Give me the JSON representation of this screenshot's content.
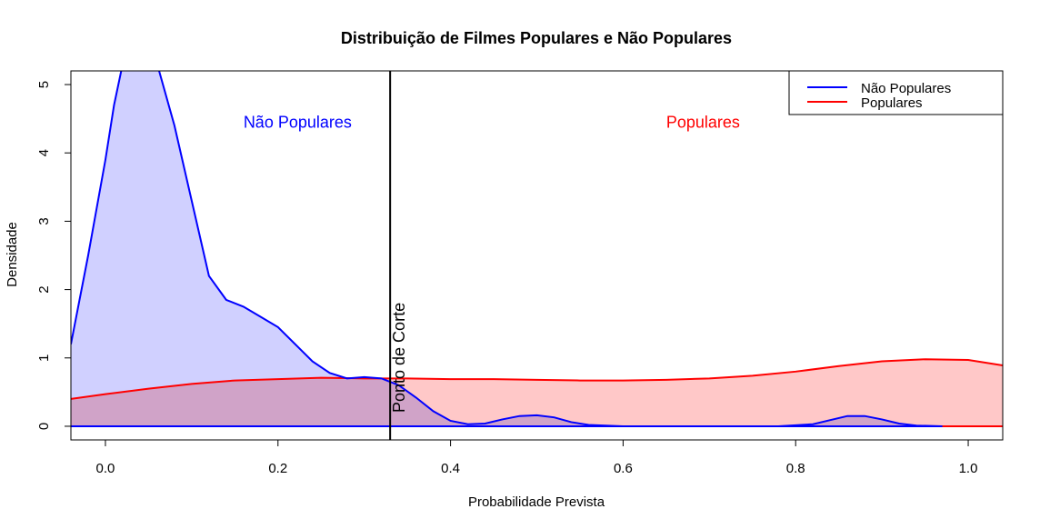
{
  "chart_data": {
    "type": "area",
    "title": "Distribuição de Filmes Populares e Não Populares",
    "xlabel": "Probabilidade Prevista",
    "ylabel": "Densidade",
    "xlim": [
      -0.04,
      1.04
    ],
    "ylim": [
      -0.2,
      5.2
    ],
    "x_ticks": [
      "0.0",
      "0.2",
      "0.4",
      "0.6",
      "0.8",
      "1.0"
    ],
    "y_ticks": [
      "0",
      "1",
      "2",
      "3",
      "4",
      "5"
    ],
    "grid": false,
    "legend_position": "top-right",
    "series": [
      {
        "name": "Não Populares",
        "line_color": "#0000FF",
        "fill_color": "#C8C8FF",
        "points": [
          [
            -0.04,
            1.2
          ],
          [
            -0.02,
            2.5
          ],
          [
            0.0,
            3.9
          ],
          [
            0.01,
            4.7
          ],
          [
            0.02,
            5.3
          ],
          [
            0.04,
            5.7
          ],
          [
            0.06,
            5.3
          ],
          [
            0.08,
            4.4
          ],
          [
            0.1,
            3.3
          ],
          [
            0.12,
            2.2
          ],
          [
            0.14,
            1.85
          ],
          [
            0.16,
            1.75
          ],
          [
            0.18,
            1.6
          ],
          [
            0.2,
            1.45
          ],
          [
            0.22,
            1.2
          ],
          [
            0.24,
            0.95
          ],
          [
            0.26,
            0.78
          ],
          [
            0.28,
            0.7
          ],
          [
            0.3,
            0.72
          ],
          [
            0.32,
            0.7
          ],
          [
            0.34,
            0.6
          ],
          [
            0.36,
            0.42
          ],
          [
            0.38,
            0.22
          ],
          [
            0.4,
            0.08
          ],
          [
            0.42,
            0.03
          ],
          [
            0.44,
            0.04
          ],
          [
            0.46,
            0.1
          ],
          [
            0.48,
            0.15
          ],
          [
            0.5,
            0.16
          ],
          [
            0.52,
            0.13
          ],
          [
            0.54,
            0.06
          ],
          [
            0.56,
            0.02
          ],
          [
            0.6,
            0.0
          ],
          [
            0.7,
            0.0
          ],
          [
            0.78,
            0.0
          ],
          [
            0.82,
            0.03
          ],
          [
            0.84,
            0.09
          ],
          [
            0.86,
            0.15
          ],
          [
            0.88,
            0.15
          ],
          [
            0.9,
            0.1
          ],
          [
            0.92,
            0.04
          ],
          [
            0.94,
            0.01
          ],
          [
            0.97,
            0.0
          ]
        ]
      },
      {
        "name": "Populares",
        "line_color": "#FF0000",
        "fill_color": "#FFC8C8",
        "points": [
          [
            -0.04,
            0.4
          ],
          [
            0.0,
            0.47
          ],
          [
            0.05,
            0.55
          ],
          [
            0.1,
            0.62
          ],
          [
            0.15,
            0.67
          ],
          [
            0.2,
            0.69
          ],
          [
            0.25,
            0.71
          ],
          [
            0.3,
            0.7
          ],
          [
            0.35,
            0.7
          ],
          [
            0.4,
            0.69
          ],
          [
            0.45,
            0.69
          ],
          [
            0.5,
            0.68
          ],
          [
            0.55,
            0.67
          ],
          [
            0.6,
            0.67
          ],
          [
            0.65,
            0.68
          ],
          [
            0.7,
            0.7
          ],
          [
            0.75,
            0.74
          ],
          [
            0.8,
            0.8
          ],
          [
            0.85,
            0.88
          ],
          [
            0.9,
            0.95
          ],
          [
            0.95,
            0.98
          ],
          [
            1.0,
            0.97
          ],
          [
            1.04,
            0.89
          ]
        ]
      }
    ],
    "cutoff": {
      "x": 0.33,
      "label": "Ponto de Corte"
    },
    "annotations": [
      {
        "text": "Não Populares",
        "x": 0.16,
        "y": 4.45,
        "color": "#0000FF"
      },
      {
        "text": "Populares",
        "x": 0.65,
        "y": 4.45,
        "color": "#FF0000"
      }
    ]
  }
}
